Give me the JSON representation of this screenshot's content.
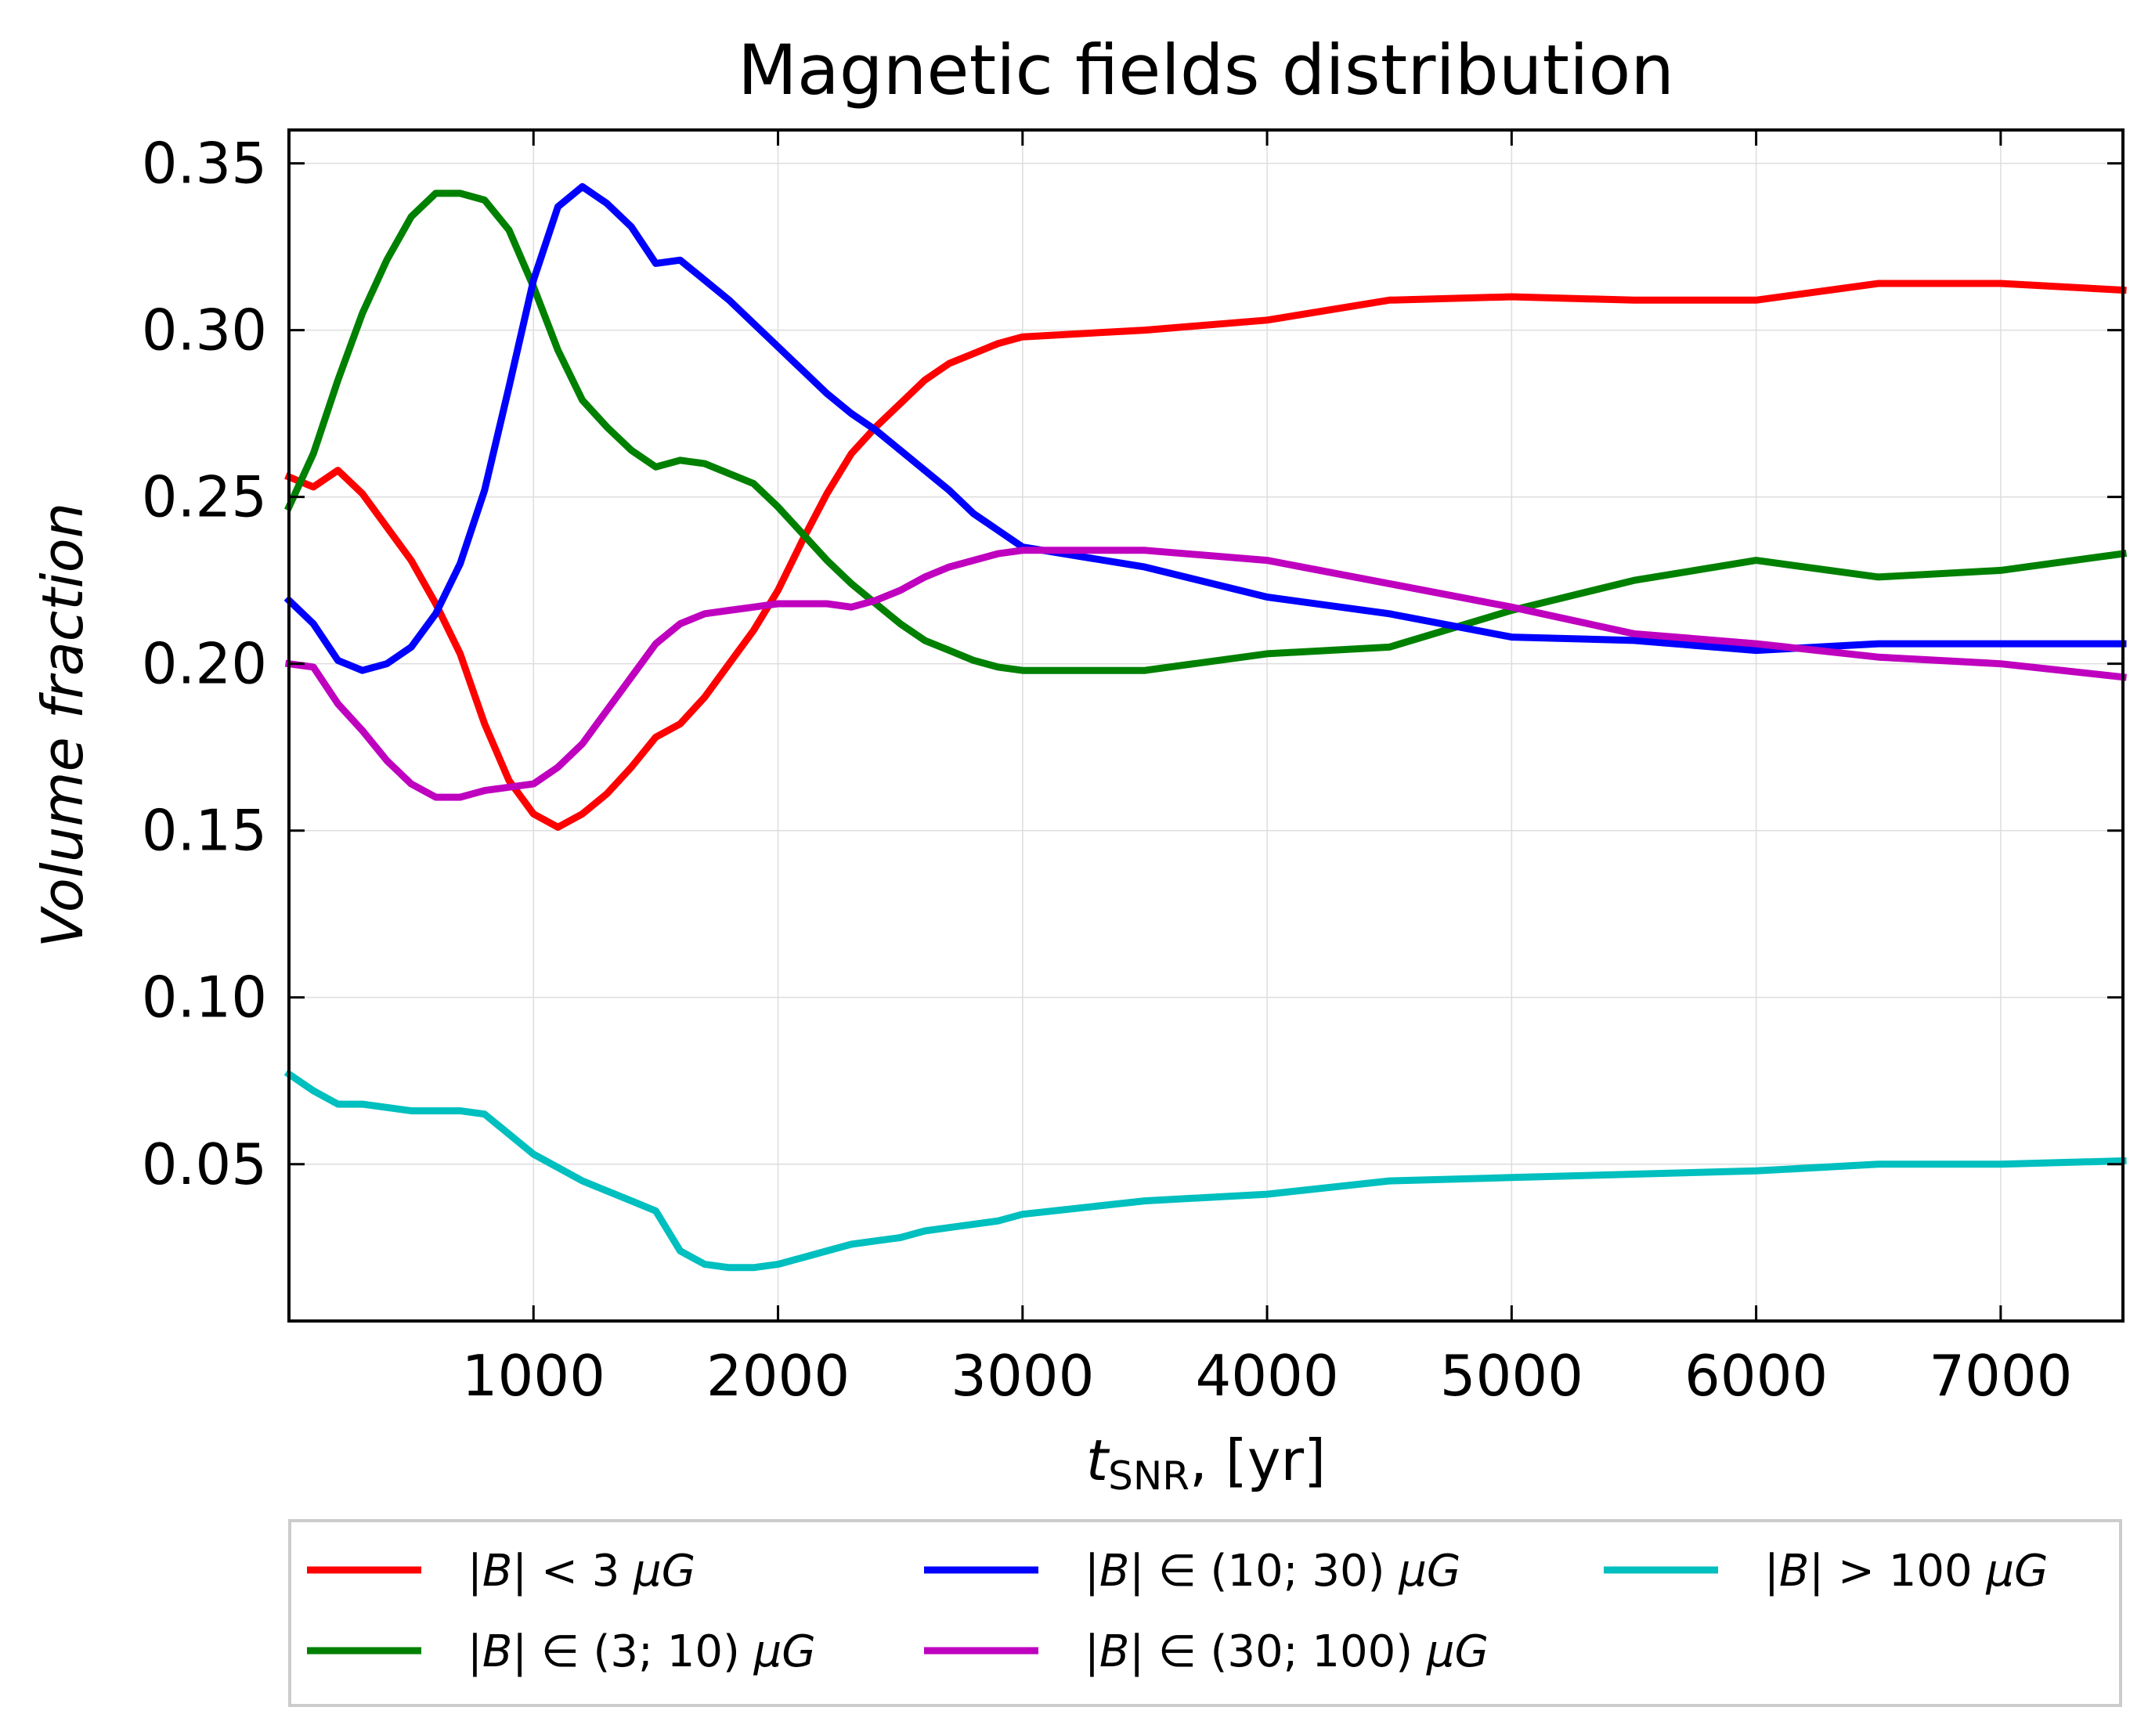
{
  "chart_data": {
    "type": "line",
    "title": "Magnetic fields distribution",
    "xlabel": {
      "var": "t",
      "sub": "SNR",
      "rest": ", [yr]"
    },
    "ylabel": "Volume fraction",
    "xlim": [
      0,
      7500
    ],
    "ylim": [
      0.003,
      0.36
    ],
    "xticks": [
      1000,
      2000,
      3000,
      4000,
      5000,
      6000,
      7000
    ],
    "yticks": [
      0.05,
      0.1,
      0.15,
      0.2,
      0.25,
      0.3,
      0.35
    ],
    "xtick_labels": [
      "1000",
      "2000",
      "3000",
      "4000",
      "5000",
      "6000",
      "7000"
    ],
    "ytick_labels": [
      "0.05",
      "0.10",
      "0.15",
      "0.20",
      "0.25",
      "0.30",
      "0.35"
    ],
    "grid": true,
    "legend_position": "bottom-outside",
    "series": [
      {
        "name": "|B| < 3 μG",
        "legend_parts": [
          "|",
          "B",
          "| < 3 ",
          "μG"
        ],
        "color": "#ff0000",
        "x": [
          0,
          100,
          200,
          300,
          400,
          500,
          600,
          700,
          800,
          900,
          1000,
          1100,
          1200,
          1300,
          1400,
          1500,
          1600,
          1700,
          1800,
          1900,
          2000,
          2100,
          2200,
          2300,
          2400,
          2500,
          2600,
          2700,
          2800,
          2900,
          3000,
          3500,
          4000,
          4500,
          5000,
          5500,
          6000,
          6500,
          7000,
          7500
        ],
        "values": [
          0.256,
          0.253,
          0.258,
          0.251,
          0.241,
          0.231,
          0.218,
          0.203,
          0.182,
          0.165,
          0.155,
          0.151,
          0.155,
          0.161,
          0.169,
          0.178,
          0.182,
          0.19,
          0.2,
          0.21,
          0.222,
          0.237,
          0.251,
          0.263,
          0.271,
          0.278,
          0.285,
          0.29,
          0.293,
          0.296,
          0.298,
          0.3,
          0.303,
          0.309,
          0.31,
          0.309,
          0.309,
          0.314,
          0.314,
          0.312
        ]
      },
      {
        "name": "|B| ∈ (3; 10) μG",
        "legend_parts": [
          "|",
          "B",
          "| ∈ (3; 10) ",
          "μG"
        ],
        "color": "#008000",
        "x": [
          0,
          100,
          200,
          300,
          400,
          500,
          600,
          700,
          800,
          900,
          1000,
          1100,
          1200,
          1300,
          1400,
          1500,
          1600,
          1700,
          1800,
          1900,
          2000,
          2100,
          2200,
          2300,
          2400,
          2500,
          2600,
          2700,
          2800,
          2900,
          3000,
          3500,
          4000,
          4500,
          5000,
          5500,
          6000,
          6500,
          7000,
          7500
        ],
        "values": [
          0.247,
          0.263,
          0.285,
          0.305,
          0.321,
          0.334,
          0.341,
          0.341,
          0.339,
          0.33,
          0.313,
          0.294,
          0.279,
          0.271,
          0.264,
          0.259,
          0.261,
          0.26,
          0.257,
          0.254,
          0.247,
          0.239,
          0.231,
          0.224,
          0.218,
          0.212,
          0.207,
          0.204,
          0.201,
          0.199,
          0.198,
          0.198,
          0.203,
          0.205,
          0.216,
          0.225,
          0.231,
          0.226,
          0.228,
          0.233
        ]
      },
      {
        "name": "|B| ∈ (10; 30) μG",
        "legend_parts": [
          "|",
          "B",
          "| ∈ (10; 30) ",
          "μG"
        ],
        "color": "#0000ff",
        "x": [
          0,
          100,
          200,
          300,
          400,
          500,
          600,
          700,
          800,
          900,
          1000,
          1100,
          1200,
          1300,
          1400,
          1500,
          1600,
          1700,
          1800,
          1900,
          2000,
          2100,
          2200,
          2300,
          2400,
          2500,
          2600,
          2700,
          2800,
          2900,
          3000,
          3500,
          4000,
          4500,
          5000,
          5500,
          6000,
          6500,
          7000,
          7500
        ],
        "values": [
          0.219,
          0.212,
          0.201,
          0.198,
          0.2,
          0.205,
          0.215,
          0.23,
          0.252,
          0.283,
          0.315,
          0.337,
          0.343,
          0.338,
          0.331,
          0.32,
          0.321,
          0.315,
          0.309,
          0.302,
          0.295,
          0.288,
          0.281,
          0.275,
          0.27,
          0.264,
          0.258,
          0.252,
          0.245,
          0.24,
          0.235,
          0.229,
          0.22,
          0.215,
          0.208,
          0.207,
          0.204,
          0.206,
          0.206,
          0.206
        ]
      },
      {
        "name": "|B| ∈ (30; 100) μG",
        "legend_parts": [
          "|",
          "B",
          "| ∈ (30; 100) ",
          "μG"
        ],
        "color": "#bf00bf",
        "x": [
          0,
          100,
          200,
          300,
          400,
          500,
          600,
          700,
          800,
          900,
          1000,
          1100,
          1200,
          1300,
          1400,
          1500,
          1600,
          1700,
          1800,
          1900,
          2000,
          2100,
          2200,
          2300,
          2400,
          2500,
          2600,
          2700,
          2800,
          2900,
          3000,
          3500,
          4000,
          4500,
          5000,
          5500,
          6000,
          6500,
          7000,
          7500
        ],
        "values": [
          0.2,
          0.199,
          0.188,
          0.18,
          0.171,
          0.164,
          0.16,
          0.16,
          0.162,
          0.163,
          0.164,
          0.169,
          0.176,
          0.186,
          0.196,
          0.206,
          0.212,
          0.215,
          0.216,
          0.217,
          0.218,
          0.218,
          0.218,
          0.217,
          0.219,
          0.222,
          0.226,
          0.229,
          0.231,
          0.233,
          0.234,
          0.234,
          0.231,
          0.224,
          0.217,
          0.209,
          0.206,
          0.202,
          0.2,
          0.196
        ]
      },
      {
        "name": "|B| > 100 μG",
        "legend_parts": [
          "|",
          "B",
          "| > 100 ",
          "μG"
        ],
        "color": "#00bfbf",
        "x": [
          0,
          100,
          200,
          300,
          400,
          500,
          600,
          700,
          800,
          900,
          1000,
          1100,
          1200,
          1300,
          1400,
          1500,
          1600,
          1700,
          1800,
          1900,
          2000,
          2100,
          2200,
          2300,
          2400,
          2500,
          2600,
          2700,
          2800,
          2900,
          3000,
          3500,
          4000,
          4500,
          5000,
          5500,
          6000,
          6500,
          7000,
          7500
        ],
        "values": [
          0.077,
          0.072,
          0.068,
          0.068,
          0.067,
          0.066,
          0.066,
          0.066,
          0.065,
          0.059,
          0.053,
          0.049,
          0.045,
          0.042,
          0.039,
          0.036,
          0.024,
          0.02,
          0.019,
          0.019,
          0.02,
          0.022,
          0.024,
          0.026,
          0.027,
          0.028,
          0.03,
          0.031,
          0.032,
          0.033,
          0.035,
          0.039,
          0.041,
          0.045,
          0.046,
          0.047,
          0.048,
          0.05,
          0.05,
          0.051
        ]
      }
    ]
  }
}
